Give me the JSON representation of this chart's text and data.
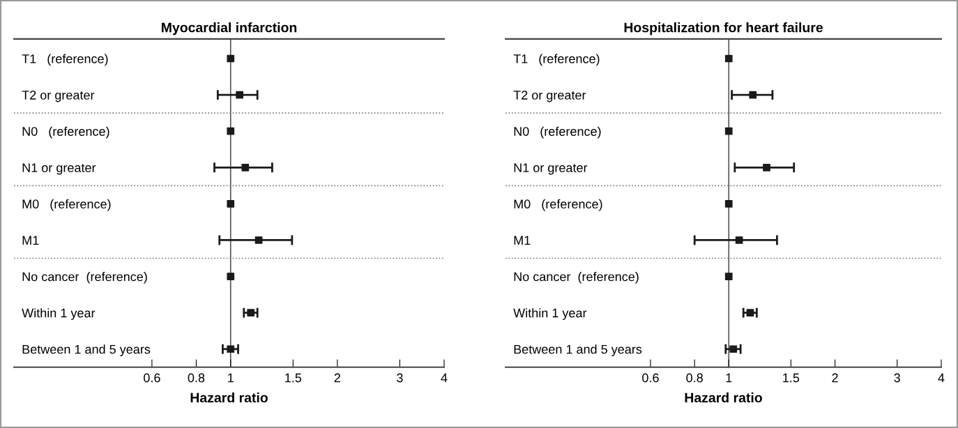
{
  "chart_data": [
    {
      "type": "scatter",
      "orientation": "horizontal",
      "title": "Myocardial infarction",
      "xlabel": "Hazard ratio",
      "log": "x",
      "categories": [
        "T1   (reference)",
        "T2 or greater",
        "N0   (reference)",
        "N1 or greater",
        "M0   (reference)",
        "M1",
        "No cancer  (reference)",
        "Within 1 year",
        "Between 1 and 5 years"
      ],
      "series": [
        {
          "color": "#1a1a1a",
          "values": [
            1,
            1.06,
            1,
            1.1,
            1,
            1.2,
            1,
            1.14,
            1.0
          ],
          "errors": [
            null,
            [
              0.92,
              1.19
            ],
            null,
            [
              0.9,
              1.31
            ],
            null,
            [
              0.93,
              1.49
            ],
            null,
            [
              1.09,
              1.19
            ],
            [
              0.95,
              1.05
            ]
          ]
        }
      ],
      "marker": "square",
      "xlim": [
        0.245,
        4
      ],
      "xticks": [
        0.6,
        0.8,
        1,
        1.5,
        2,
        3,
        4
      ],
      "grid": false,
      "legend": false,
      "ref_lines": [
        {
          "axis": "x",
          "value": 1,
          "color": "#555555",
          "line_style": "solid"
        }
      ]
    },
    {
      "type": "scatter",
      "orientation": "horizontal",
      "title": "Hospitalization for heart failure",
      "xlabel": "Hazard ratio",
      "log": "x",
      "categories": [
        "T1   (reference)",
        "T2 or greater",
        "N0   (reference)",
        "N1 or greater",
        "M0   (reference)",
        "M1",
        "No cancer  (reference)",
        "Within 1 year",
        "Between 1 and 5 years"
      ],
      "series": [
        {
          "color": "#1a1a1a",
          "values": [
            1,
            1.17,
            1,
            1.28,
            1,
            1.07,
            1,
            1.15,
            1.03
          ],
          "errors": [
            null,
            [
              1.02,
              1.33
            ],
            null,
            [
              1.04,
              1.53
            ],
            null,
            [
              0.8,
              1.37
            ],
            null,
            [
              1.1,
              1.2
            ],
            [
              0.98,
              1.08
            ]
          ]
        }
      ],
      "marker": "square",
      "xlim": [
        0.233,
        4
      ],
      "xticks": [
        0.6,
        0.8,
        1,
        1.5,
        2,
        3,
        4
      ],
      "grid": false,
      "legend": false,
      "ref_lines": [
        {
          "axis": "x",
          "value": 1,
          "color": "#555555",
          "line_style": "solid"
        }
      ]
    }
  ]
}
